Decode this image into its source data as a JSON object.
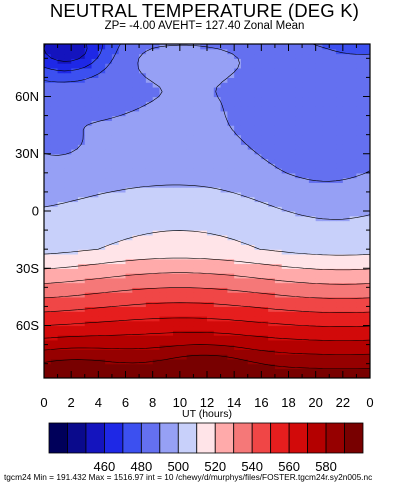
{
  "chart_data": {
    "type": "heatmap",
    "title": "NEUTRAL TEMPERATURE (DEG K)",
    "subtitle": "ZP= -4.00 AVEHT= 127.40 Zonal Mean",
    "xlabel": "UT (hours)",
    "ylabel": "",
    "x_ticks": [
      "0",
      "2",
      "4",
      "6",
      "8",
      "10",
      "12",
      "14",
      "16",
      "18",
      "20",
      "22",
      "0"
    ],
    "y_ticks": [
      "60N",
      "30N",
      "0",
      "30S",
      "60S"
    ],
    "y_tick_values": [
      60,
      30,
      0,
      -30,
      -60
    ],
    "xlim": [
      0,
      24
    ],
    "ylim": [
      -87.5,
      87.5
    ],
    "contour_levels": [
      440,
      450,
      460,
      470,
      480,
      490,
      500,
      510,
      520,
      530,
      540,
      550,
      560,
      570,
      580,
      590
    ],
    "colorbar_labels": [
      "460",
      "480",
      "500",
      "520",
      "540",
      "560",
      "580"
    ],
    "colorbar_label_values": [
      460,
      480,
      500,
      520,
      540,
      560,
      580
    ],
    "colors": [
      "#00005a",
      "#0a0a8c",
      "#1414be",
      "#1e28e6",
      "#3c50f0",
      "#6470f0",
      "#96a0f5",
      "#c8d0fa",
      "#ffe4e8",
      "#ffaaaa",
      "#f57878",
      "#f04646",
      "#e61e1e",
      "#d20a0a",
      "#b40000",
      "#960000",
      "#780000"
    ],
    "stats": "tgcm24 Min = 191.432  Max  = 1516.97  int = 10 /chewy/d/murphys/files/FOSTER.tgcm24r.sy2n005.nc"
  }
}
